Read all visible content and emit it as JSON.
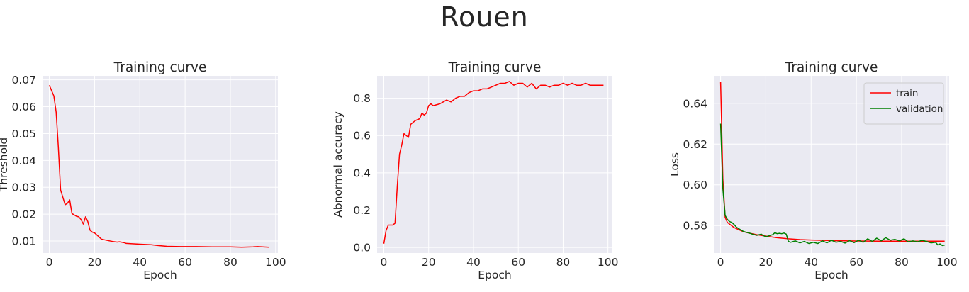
{
  "suptitle": "Rouen",
  "chart_data": [
    {
      "type": "line",
      "title": "Training curve",
      "xlabel": "Epoch",
      "ylabel": "Threshold",
      "xlim": [
        -3,
        101
      ],
      "ylim": [
        0.0055,
        0.0715
      ],
      "xticks": [
        0,
        20,
        40,
        60,
        80,
        100
      ],
      "yticks": [
        0.01,
        0.02,
        0.03,
        0.04,
        0.05,
        0.06,
        0.07
      ],
      "grid": true,
      "series": [
        {
          "color": "#ff0000",
          "x": [
            0,
            2,
            3,
            4,
            5,
            7,
            8,
            9,
            10,
            12,
            13,
            14,
            15,
            16,
            17,
            18,
            19,
            20,
            22,
            23,
            25,
            28,
            30,
            31,
            33,
            34,
            36,
            40,
            45,
            48,
            52,
            58,
            65,
            72,
            80,
            85,
            90,
            92,
            97
          ],
          "y": [
            0.068,
            0.064,
            0.058,
            0.045,
            0.029,
            0.0235,
            0.024,
            0.0253,
            0.0202,
            0.0192,
            0.019,
            0.018,
            0.0163,
            0.019,
            0.0173,
            0.014,
            0.0133,
            0.013,
            0.0115,
            0.0107,
            0.0103,
            0.0098,
            0.0096,
            0.0097,
            0.0094,
            0.0091,
            0.009,
            0.0088,
            0.0086,
            0.0083,
            0.008,
            0.0079,
            0.0079,
            0.0078,
            0.0078,
            0.0077,
            0.0078,
            0.0079,
            0.0077
          ]
        }
      ]
    },
    {
      "type": "line",
      "title": "Training curve",
      "xlabel": "Epoch",
      "ylabel": "Abnormal accuracy",
      "xlim": [
        -3,
        102
      ],
      "ylim": [
        -0.03,
        0.92
      ],
      "xticks": [
        0,
        20,
        40,
        60,
        80,
        100
      ],
      "yticks": [
        0.0,
        0.2,
        0.4,
        0.6,
        0.8
      ],
      "grid": true,
      "series": [
        {
          "color": "#ff0000",
          "x": [
            0,
            1,
            2,
            4,
            5,
            6,
            7,
            8,
            9,
            10,
            11,
            12,
            14,
            16,
            17,
            18,
            19,
            20,
            21,
            22,
            25,
            28,
            30,
            32,
            34,
            36,
            38,
            40,
            42,
            44,
            46,
            48,
            50,
            52,
            54,
            56,
            58,
            60,
            62,
            63,
            64,
            66,
            68,
            70,
            72,
            74,
            76,
            78,
            80,
            82,
            84,
            86,
            88,
            90,
            92,
            94,
            96,
            98
          ],
          "y": [
            0.02,
            0.09,
            0.12,
            0.12,
            0.13,
            0.33,
            0.5,
            0.55,
            0.61,
            0.6,
            0.59,
            0.66,
            0.68,
            0.69,
            0.72,
            0.71,
            0.72,
            0.76,
            0.77,
            0.76,
            0.77,
            0.79,
            0.78,
            0.8,
            0.81,
            0.81,
            0.83,
            0.84,
            0.84,
            0.85,
            0.85,
            0.86,
            0.87,
            0.88,
            0.88,
            0.89,
            0.87,
            0.88,
            0.88,
            0.87,
            0.86,
            0.88,
            0.85,
            0.87,
            0.87,
            0.86,
            0.87,
            0.87,
            0.88,
            0.87,
            0.88,
            0.87,
            0.87,
            0.88,
            0.87,
            0.87,
            0.87,
            0.87
          ]
        }
      ]
    },
    {
      "type": "line",
      "title": "Training curve",
      "xlabel": "Epoch",
      "ylabel": "Loss",
      "xlim": [
        -3,
        101
      ],
      "ylim": [
        0.5665,
        0.6535
      ],
      "xticks": [
        0,
        20,
        40,
        60,
        80,
        100
      ],
      "yticks": [
        0.58,
        0.6,
        0.62,
        0.64
      ],
      "grid": true,
      "legend": "top-right",
      "series": [
        {
          "name": "train",
          "color": "#ff0000",
          "x": [
            0,
            1,
            2,
            3,
            4,
            6,
            8,
            10,
            13,
            16,
            20,
            25,
            30,
            35,
            40,
            50,
            60,
            70,
            80,
            90,
            99
          ],
          "y": [
            0.6505,
            0.603,
            0.584,
            0.5815,
            0.5807,
            0.579,
            0.578,
            0.577,
            0.5762,
            0.5755,
            0.5748,
            0.574,
            0.5735,
            0.5731,
            0.5729,
            0.5726,
            0.5724,
            0.5723,
            0.5723,
            0.5723,
            0.5723
          ]
        },
        {
          "name": "validation",
          "color": "#008000",
          "x": [
            0,
            1,
            2,
            3,
            4,
            5,
            6,
            7,
            8,
            9,
            10,
            11,
            12,
            13,
            14,
            15,
            16,
            17,
            18,
            19,
            20,
            21,
            22,
            23,
            24,
            25,
            26,
            27,
            28,
            29,
            30,
            31,
            33,
            35,
            37,
            39,
            41,
            43,
            45,
            47,
            49,
            51,
            53,
            55,
            57,
            59,
            61,
            63,
            65,
            67,
            69,
            71,
            73,
            75,
            77,
            79,
            81,
            83,
            85,
            87,
            89,
            91,
            93,
            95,
            96,
            97,
            98,
            99
          ],
          "y": [
            0.63,
            0.598,
            0.585,
            0.583,
            0.582,
            0.5815,
            0.5805,
            0.5792,
            0.5785,
            0.5778,
            0.5772,
            0.5768,
            0.5765,
            0.5762,
            0.5758,
            0.5755,
            0.5752,
            0.5755,
            0.5758,
            0.575,
            0.5745,
            0.5748,
            0.5752,
            0.5755,
            0.5765,
            0.576,
            0.5762,
            0.576,
            0.5763,
            0.5758,
            0.5722,
            0.5718,
            0.5725,
            0.5715,
            0.5722,
            0.5712,
            0.5718,
            0.5712,
            0.5725,
            0.5715,
            0.5728,
            0.5718,
            0.5722,
            0.5714,
            0.5726,
            0.5716,
            0.5728,
            0.5718,
            0.5735,
            0.5722,
            0.5738,
            0.5725,
            0.574,
            0.5728,
            0.5732,
            0.5725,
            0.5735,
            0.572,
            0.5725,
            0.572,
            0.5728,
            0.5722,
            0.5715,
            0.5718,
            0.5705,
            0.571,
            0.5702,
            0.5704
          ]
        }
      ]
    }
  ]
}
